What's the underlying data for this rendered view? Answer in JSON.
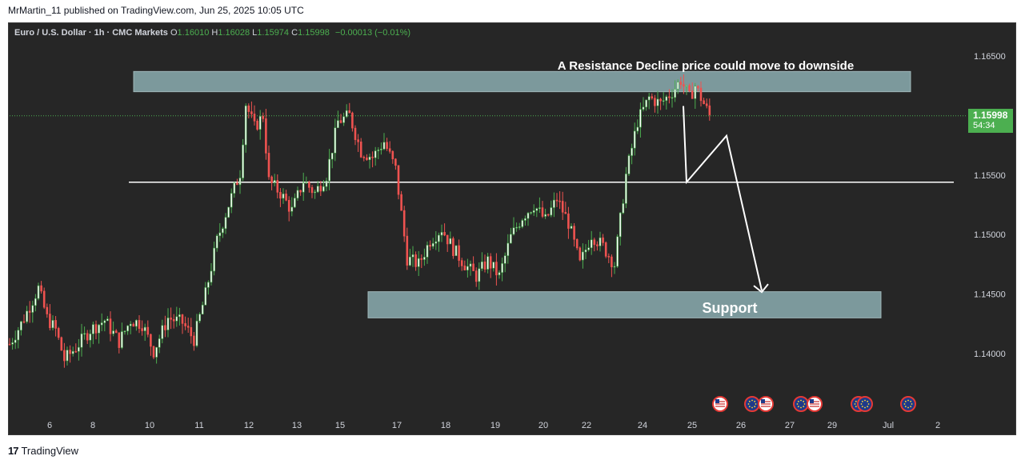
{
  "caption": "MrMartin_11 published on TradingView.com, Jun 25, 2025 10:05 UTC",
  "legend": {
    "symbol": "Euro / U.S. Dollar · 1h · CMC Markets",
    "o_label": "O",
    "o": "1.16010",
    "h_label": "H",
    "h": "1.16028",
    "l_label": "L",
    "l": "1.15974",
    "c_label": "C",
    "c": "1.15998",
    "change": "−0.00013 (−0.01%)"
  },
  "price_tag": {
    "price": "1.15998",
    "countdown": "54:34"
  },
  "logo": {
    "mark": "17",
    "text": "TradingView"
  },
  "colors": {
    "background": "#262626",
    "up": "#4caf50",
    "down": "#ef5350",
    "zone": "#7c999c",
    "annotation": "#ffffff"
  },
  "chart_data": {
    "type": "candlestick",
    "title": "",
    "y_axis": {
      "ticks": [
        "1.16500",
        "1.16000",
        "1.15500",
        "1.15000",
        "1.14500",
        "1.14000"
      ],
      "tick_values": [
        1.165,
        1.16,
        1.155,
        1.15,
        1.145,
        1.14
      ],
      "range": [
        1.1365,
        1.1675
      ]
    },
    "x_axis": {
      "labels": [
        "6",
        "8",
        "10",
        "11",
        "12",
        "13",
        "15",
        "17",
        "18",
        "19",
        "20",
        "22",
        "24",
        "25",
        "26",
        "27",
        "29",
        "Jul",
        "2"
      ]
    },
    "price_path": [
      [
        0,
        1.1408
      ],
      [
        4,
        1.1425
      ],
      [
        8,
        1.1445
      ],
      [
        10,
        1.1455
      ],
      [
        13,
        1.143
      ],
      [
        16,
        1.142
      ],
      [
        19,
        1.1395
      ],
      [
        23,
        1.1405
      ],
      [
        28,
        1.142
      ],
      [
        33,
        1.1428
      ],
      [
        38,
        1.141
      ],
      [
        42,
        1.1428
      ],
      [
        46,
        1.1425
      ],
      [
        50,
        1.1402
      ],
      [
        55,
        1.143
      ],
      [
        60,
        1.1426
      ],
      [
        64,
        1.1412
      ],
      [
        68,
        1.145
      ],
      [
        72,
        1.1495
      ],
      [
        76,
        1.1525
      ],
      [
        80,
        1.1552
      ],
      [
        82,
        1.161
      ],
      [
        85,
        1.159
      ],
      [
        88,
        1.16
      ],
      [
        90,
        1.1545
      ],
      [
        94,
        1.1535
      ],
      [
        98,
        1.152
      ],
      [
        102,
        1.1545
      ],
      [
        106,
        1.1535
      ],
      [
        110,
        1.155
      ],
      [
        114,
        1.1595
      ],
      [
        118,
        1.16
      ],
      [
        122,
        1.157
      ],
      [
        126,
        1.1565
      ],
      [
        130,
        1.1578
      ],
      [
        134,
        1.1555
      ],
      [
        138,
        1.148
      ],
      [
        142,
        1.1475
      ],
      [
        146,
        1.1495
      ],
      [
        150,
        1.1505
      ],
      [
        154,
        1.1488
      ],
      [
        158,
        1.1475
      ],
      [
        162,
        1.1465
      ],
      [
        166,
        1.1478
      ],
      [
        170,
        1.1465
      ],
      [
        174,
        1.1498
      ],
      [
        178,
        1.1515
      ],
      [
        182,
        1.1525
      ],
      [
        186,
        1.1512
      ],
      [
        190,
        1.153
      ],
      [
        194,
        1.151
      ],
      [
        198,
        1.1475
      ],
      [
        202,
        1.15
      ],
      [
        206,
        1.149
      ],
      [
        210,
        1.1475
      ],
      [
        214,
        1.155
      ],
      [
        218,
        1.1595
      ],
      [
        222,
        1.1615
      ],
      [
        226,
        1.161
      ],
      [
        230,
        1.162
      ],
      [
        233,
        1.163
      ],
      [
        236,
        1.1615
      ],
      [
        238,
        1.1625
      ],
      [
        241,
        1.161
      ],
      [
        243,
        1.16
      ]
    ],
    "price_line": 1.15998,
    "resistance_zone": [
      1.162,
      1.1637
    ],
    "support_zone": [
      1.143,
      1.1452
    ],
    "horizontal_line": 1.1544,
    "projection_path": [
      [
        1.1608
      ],
      [
        1.1544
      ],
      [
        1.1583
      ],
      [
        1.1453
      ]
    ],
    "annotations": {
      "resistance": "A Resistance Decline price could move to downside",
      "support": "Support"
    },
    "event_markers": [
      "us",
      "eu",
      "us",
      "eu",
      "us",
      "eu",
      "eu",
      "eu"
    ]
  }
}
